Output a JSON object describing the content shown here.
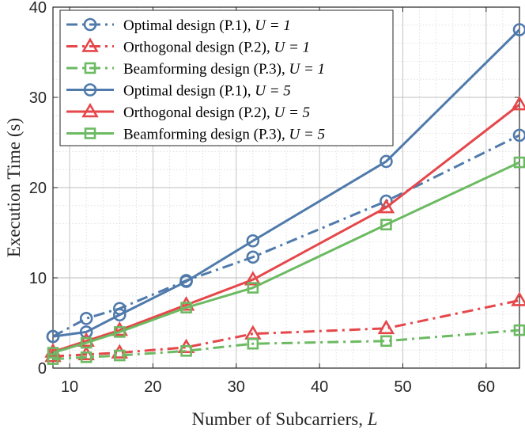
{
  "chart_data": {
    "type": "line",
    "xlabel_text": "Number of Subcarriers, ",
    "xlabel_var": "L",
    "ylabel": "Execution Time (s)",
    "xlim": [
      8,
      64
    ],
    "ylim": [
      0,
      40
    ],
    "xticks": [
      10,
      20,
      30,
      40,
      50,
      60
    ],
    "yticks": [
      0,
      10,
      20,
      30,
      40
    ],
    "grid": true,
    "legend_position": "top-left",
    "series": [
      {
        "name": "Optimal design (P.1), U = 1",
        "legend_main": "Optimal design (P.1), ",
        "legend_var": "U = 1",
        "color": "#4f7aab",
        "dash": "dashdot",
        "marker": "circle",
        "x": [
          8,
          12,
          16,
          24,
          32,
          48,
          64
        ],
        "y": [
          3.5,
          5.5,
          6.6,
          9.7,
          12.3,
          18.5,
          25.8
        ]
      },
      {
        "name": "Orthogonal design (P.2), U = 1",
        "legend_main": "Orthogonal design (P.2), ",
        "legend_var": "U = 1",
        "color": "#e5474a",
        "dash": "dashdot",
        "marker": "triangle",
        "x": [
          8,
          12,
          16,
          24,
          32,
          48,
          64
        ],
        "y": [
          1.3,
          1.5,
          1.7,
          2.3,
          3.8,
          4.4,
          7.5
        ]
      },
      {
        "name": "Beamforming design (P.3), U = 1",
        "legend_main": "Beamforming design (P.3), ",
        "legend_var": "U = 1",
        "color": "#6cba62",
        "dash": "dashdot",
        "marker": "square",
        "x": [
          8,
          12,
          16,
          24,
          32,
          48,
          64
        ],
        "y": [
          1.0,
          1.2,
          1.4,
          1.9,
          2.7,
          3.0,
          4.2
        ]
      },
      {
        "name": "Optimal design (P.1), U = 5",
        "legend_main": "Optimal design (P.1), ",
        "legend_var": "U = 5",
        "color": "#4f7aab",
        "dash": "solid",
        "marker": "circle",
        "x": [
          8,
          12,
          16,
          24,
          32,
          48,
          64
        ],
        "y": [
          3.5,
          4.0,
          5.9,
          9.6,
          14.1,
          22.9,
          37.5
        ]
      },
      {
        "name": "Orthogonal design (P.2), U = 5",
        "legend_main": "Orthogonal design (P.2), ",
        "legend_var": "U = 5",
        "color": "#e5474a",
        "dash": "solid",
        "marker": "triangle",
        "x": [
          8,
          12,
          16,
          24,
          32,
          48,
          64
        ],
        "y": [
          1.8,
          3.0,
          4.2,
          7.0,
          9.8,
          17.8,
          29.2
        ]
      },
      {
        "name": "Beamforming design (P.3), U = 5",
        "legend_main": "Beamforming design (P.3), ",
        "legend_var": "U = 5",
        "color": "#6cba62",
        "dash": "solid",
        "marker": "square",
        "x": [
          8,
          12,
          16,
          24,
          32,
          48,
          64
        ],
        "y": [
          1.7,
          2.8,
          4.0,
          6.7,
          8.9,
          15.9,
          22.8
        ]
      }
    ]
  }
}
